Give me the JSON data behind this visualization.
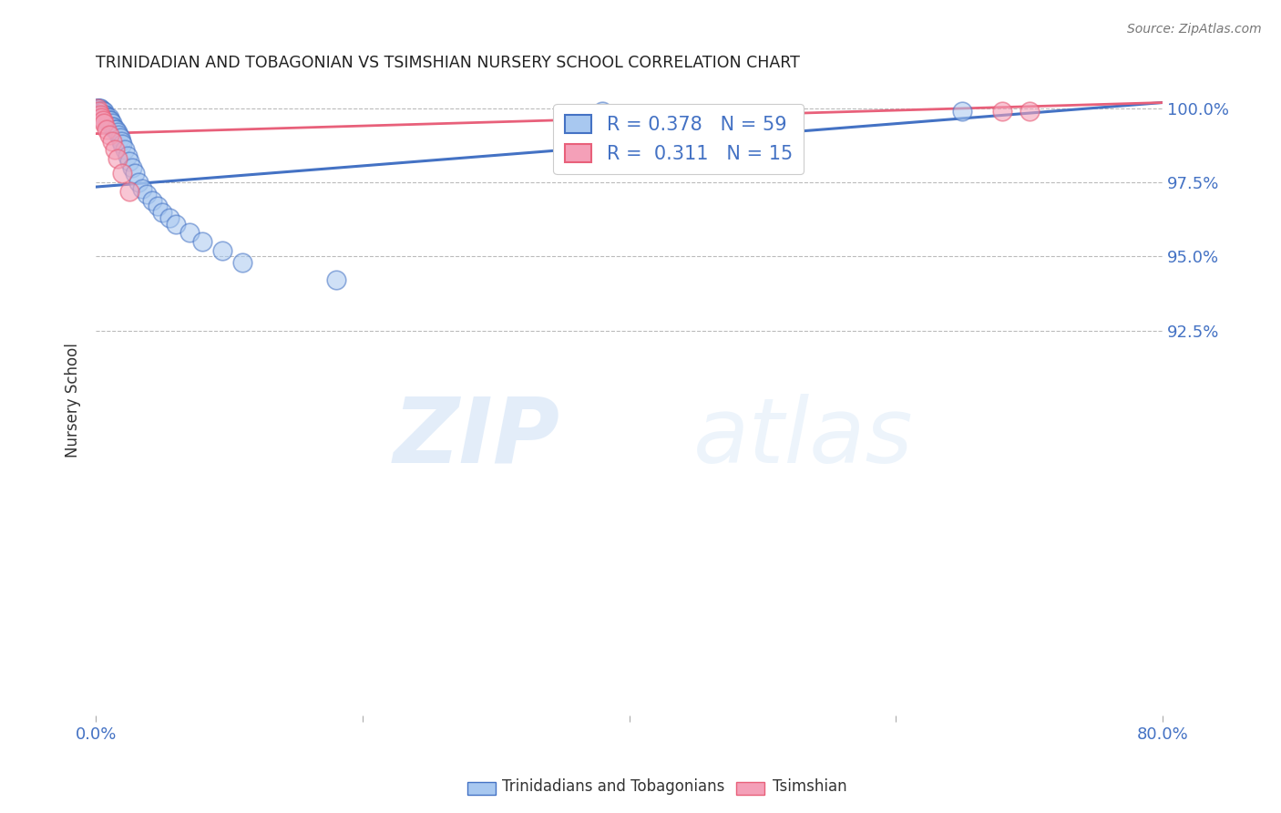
{
  "title": "TRINIDADIAN AND TOBAGONIAN VS TSIMSHIAN NURSERY SCHOOL CORRELATION CHART",
  "source": "Source: ZipAtlas.com",
  "ylabel_label": "Nursery School",
  "legend_label1": "Trinidadians and Tobagonians",
  "legend_label2": "Tsimshian",
  "r1": 0.378,
  "n1": 59,
  "r2": 0.311,
  "n2": 15,
  "color1": "#a8c8f0",
  "color2": "#f4a0b8",
  "line_color1": "#4472c4",
  "line_color2": "#e8607a",
  "title_color": "#222222",
  "tick_color": "#4472c4",
  "watermark_zip": "ZIP",
  "watermark_atlas": "atlas",
  "xlim": [
    0.0,
    0.8
  ],
  "ylim": [
    0.795,
    1.008
  ],
  "xtick_positions": [
    0.0,
    0.2,
    0.4,
    0.6,
    0.8
  ],
  "xtick_labels": [
    "0.0%",
    "",
    "",
    "",
    "80.0%"
  ],
  "ytick_positions": [
    0.925,
    0.95,
    0.975,
    1.0
  ],
  "ytick_labels": [
    "92.5%",
    "95.0%",
    "97.5%",
    "100.0%"
  ],
  "blue_scatter_x": [
    0.001,
    0.001,
    0.001,
    0.002,
    0.002,
    0.002,
    0.002,
    0.003,
    0.003,
    0.003,
    0.004,
    0.004,
    0.004,
    0.005,
    0.005,
    0.005,
    0.006,
    0.006,
    0.006,
    0.007,
    0.007,
    0.007,
    0.008,
    0.008,
    0.009,
    0.009,
    0.01,
    0.01,
    0.011,
    0.012,
    0.012,
    0.013,
    0.014,
    0.015,
    0.016,
    0.017,
    0.018,
    0.019,
    0.02,
    0.022,
    0.024,
    0.025,
    0.027,
    0.029,
    0.032,
    0.035,
    0.038,
    0.042,
    0.046,
    0.05,
    0.055,
    0.06,
    0.07,
    0.08,
    0.095,
    0.11,
    0.18,
    0.38,
    0.65
  ],
  "blue_scatter_y": [
    1.0,
    1.0,
    1.0,
    1.0,
    0.999,
    1.0,
    0.999,
    1.0,
    1.0,
    0.999,
    0.999,
    0.998,
    0.999,
    0.999,
    0.998,
    0.999,
    0.999,
    0.998,
    0.997,
    0.998,
    0.997,
    0.998,
    0.997,
    0.996,
    0.997,
    0.996,
    0.997,
    0.996,
    0.996,
    0.995,
    0.994,
    0.994,
    0.993,
    0.993,
    0.992,
    0.991,
    0.99,
    0.989,
    0.988,
    0.986,
    0.984,
    0.982,
    0.98,
    0.978,
    0.975,
    0.973,
    0.971,
    0.969,
    0.967,
    0.965,
    0.963,
    0.961,
    0.958,
    0.955,
    0.952,
    0.948,
    0.942,
    0.999,
    0.999
  ],
  "pink_scatter_x": [
    0.001,
    0.002,
    0.003,
    0.004,
    0.005,
    0.006,
    0.008,
    0.01,
    0.012,
    0.014,
    0.016,
    0.02,
    0.025,
    0.68,
    0.7
  ],
  "pink_scatter_y": [
    1.0,
    0.999,
    0.998,
    0.997,
    0.996,
    0.995,
    0.993,
    0.991,
    0.989,
    0.986,
    0.983,
    0.978,
    0.972,
    0.999,
    0.999
  ],
  "blue_line_x0": 0.0,
  "blue_line_x1": 0.8,
  "blue_line_y0": 0.9735,
  "blue_line_y1": 1.002,
  "pink_line_x0": 0.0,
  "pink_line_x1": 0.8,
  "pink_line_y0": 0.9915,
  "pink_line_y1": 1.002
}
